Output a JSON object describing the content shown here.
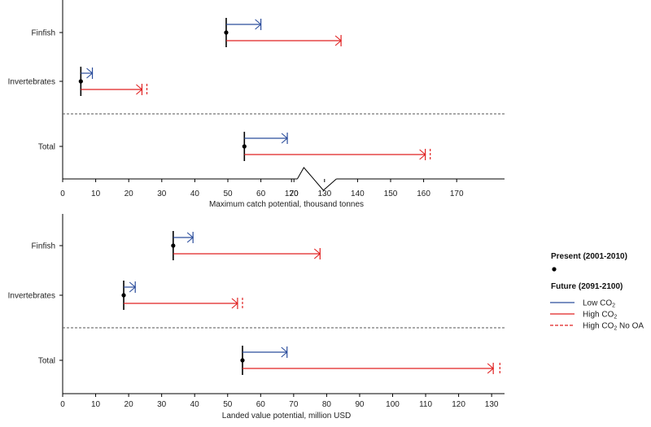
{
  "colors": {
    "low_co2": "#2b4d9c",
    "high_co2": "#e02020",
    "present_marker": "#000000",
    "axis": "#000000",
    "divider": "#555555"
  },
  "legend": {
    "present_label": "Present (2001-2010)",
    "future_label": "Future (2091-2100)",
    "entries": [
      {
        "key": "low",
        "label": "Low CO",
        "sub": "2",
        "style": "solid",
        "color": "#2b4d9c"
      },
      {
        "key": "high",
        "label": "High CO",
        "sub": "2",
        "style": "solid",
        "color": "#e02020"
      },
      {
        "key": "high_noca",
        "label": "High CO",
        "sub": "2",
        "suffix": " No OA",
        "style": "dashed",
        "color": "#e02020"
      }
    ]
  },
  "chart_data": [
    {
      "type": "range-arrow",
      "xlabel": "Maximum catch potential, thousand tonnes",
      "xlim": [
        0,
        180
      ],
      "axis_break": {
        "from": 73,
        "to": 125
      },
      "ticks": [
        0,
        10,
        20,
        30,
        40,
        50,
        60,
        70,
        120,
        130,
        140,
        150,
        160,
        170
      ],
      "tick_labels": [
        "0",
        "10",
        "20",
        "30",
        "40",
        "50",
        "60",
        "70",
        "120",
        "130",
        "140",
        "150",
        "160",
        "170"
      ],
      "categories": [
        "Finfish",
        "Invertebrates",
        "Total"
      ],
      "present": [
        49.5,
        5.5,
        55
      ],
      "low_co2": [
        60,
        9,
        68
      ],
      "high_co2": [
        135,
        24,
        160.5
      ],
      "high_co2_no_oa": [
        null,
        25.5,
        162
      ]
    },
    {
      "type": "range-arrow",
      "xlabel": "Landed value potential, million USD",
      "xlim": [
        0,
        134
      ],
      "ticks": [
        0,
        10,
        20,
        30,
        40,
        50,
        60,
        70,
        80,
        90,
        100,
        110,
        120,
        130
      ],
      "tick_labels": [
        "0",
        "10",
        "20",
        "30",
        "40",
        "50",
        "60",
        "70",
        "80",
        "90",
        "100",
        "110",
        "120",
        "130"
      ],
      "categories": [
        "Finfish",
        "Invertebrates",
        "Total"
      ],
      "present": [
        33.5,
        18.5,
        54.5
      ],
      "low_co2": [
        39.5,
        22,
        68
      ],
      "high_co2": [
        78,
        53,
        130.5
      ],
      "high_co2_no_oa": [
        null,
        54.5,
        132.5
      ]
    }
  ]
}
